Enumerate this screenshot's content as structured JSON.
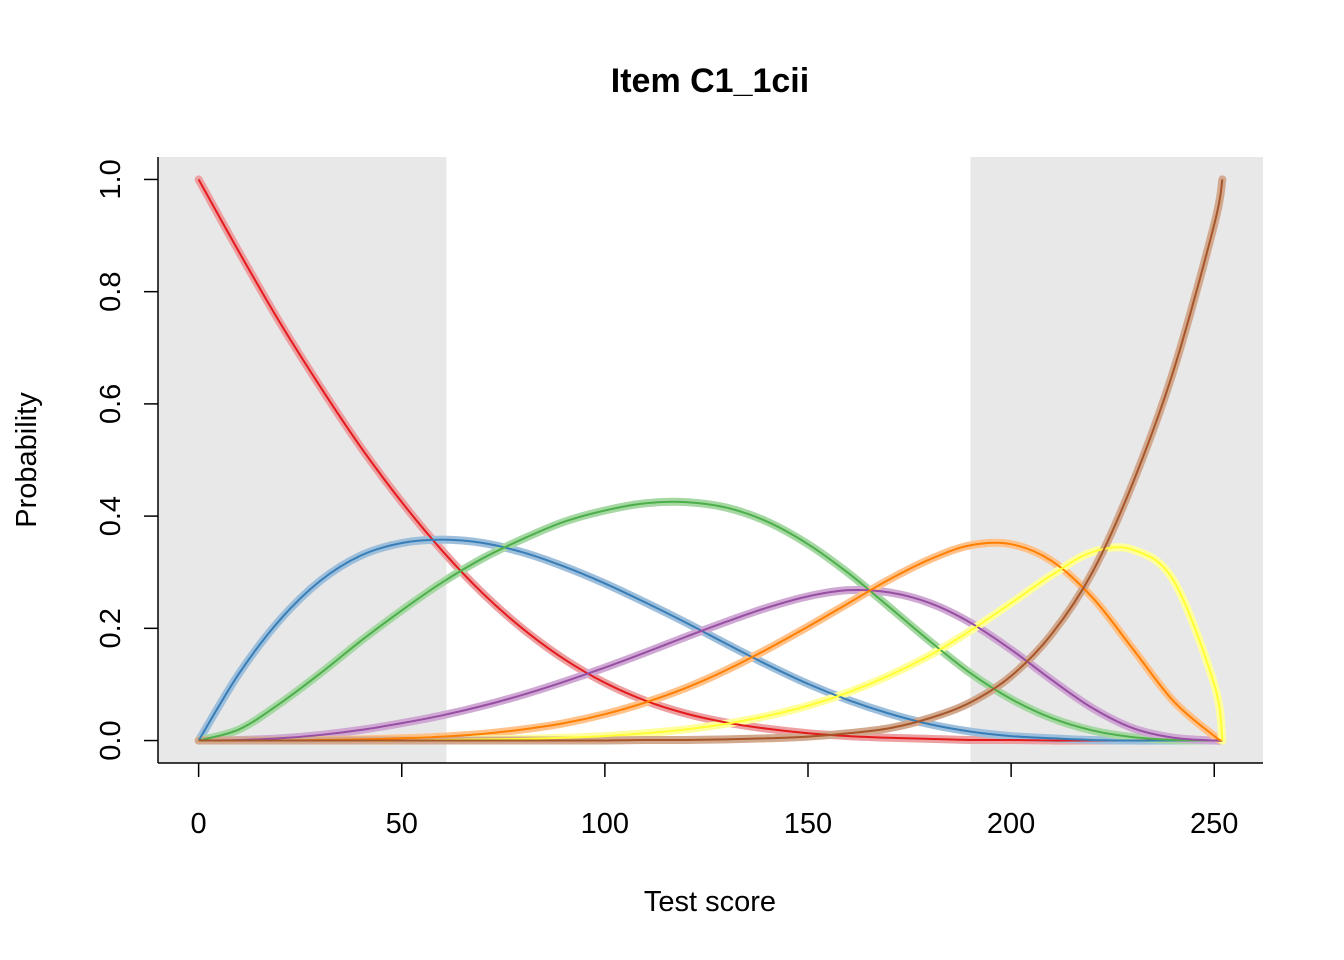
{
  "chart_data": {
    "type": "line",
    "title": "Item C1_1cii",
    "xlabel": "Test score",
    "ylabel": "Probability",
    "xlim": [
      -10,
      262
    ],
    "ylim": [
      -0.04,
      1.04
    ],
    "xticks": [
      0,
      50,
      100,
      150,
      200,
      250
    ],
    "yticks": [
      0.0,
      0.2,
      0.4,
      0.6,
      0.8,
      1.0
    ],
    "xtick_labels": [
      "0",
      "50",
      "100",
      "150",
      "200",
      "250"
    ],
    "ytick_labels": [
      "0.0",
      "0.2",
      "0.4",
      "0.6",
      "0.8",
      "1.0"
    ],
    "shaded_regions": [
      {
        "x_from": -10,
        "x_to": 61,
        "color": "#e8e8e8"
      },
      {
        "x_from": 190,
        "x_to": 262,
        "color": "#e8e8e8"
      }
    ],
    "grid": false,
    "legend": "none",
    "x": [
      0,
      10,
      20,
      30,
      40,
      50,
      60,
      70,
      80,
      90,
      100,
      110,
      120,
      130,
      140,
      150,
      160,
      170,
      180,
      190,
      200,
      210,
      220,
      230,
      240,
      250,
      252
    ],
    "series": [
      {
        "color": "#e41a1c",
        "band_color": "#eda0a2",
        "values": [
          1.0,
          0.87,
          0.745,
          0.63,
          0.522,
          0.425,
          0.338,
          0.262,
          0.198,
          0.145,
          0.103,
          0.071,
          0.048,
          0.032,
          0.021,
          0.013,
          0.008,
          0.005,
          0.003,
          0.001,
          0.001,
          0.0,
          0.0,
          0.0,
          0.0,
          0.0,
          0.0
        ]
      },
      {
        "color": "#377eb8",
        "band_color": "#9dbfdc",
        "values": [
          0.0,
          0.12,
          0.215,
          0.285,
          0.33,
          0.352,
          0.358,
          0.352,
          0.335,
          0.31,
          0.28,
          0.246,
          0.21,
          0.172,
          0.135,
          0.101,
          0.072,
          0.048,
          0.029,
          0.016,
          0.008,
          0.004,
          0.001,
          0.0,
          0.0,
          0.0,
          0.0
        ]
      },
      {
        "color": "#4daf4a",
        "band_color": "#a6d8a4",
        "values": [
          0.0,
          0.02,
          0.066,
          0.12,
          0.178,
          0.232,
          0.282,
          0.325,
          0.36,
          0.39,
          0.41,
          0.423,
          0.425,
          0.415,
          0.39,
          0.35,
          0.298,
          0.238,
          0.177,
          0.12,
          0.074,
          0.04,
          0.018,
          0.006,
          0.001,
          0.0,
          0.0
        ]
      },
      {
        "color": "#984ea3",
        "band_color": "#cfa9d4",
        "values": [
          0.0,
          0.001,
          0.004,
          0.01,
          0.019,
          0.031,
          0.045,
          0.062,
          0.082,
          0.105,
          0.13,
          0.157,
          0.185,
          0.212,
          0.237,
          0.257,
          0.268,
          0.264,
          0.245,
          0.21,
          0.162,
          0.108,
          0.058,
          0.022,
          0.005,
          0.0,
          0.0
        ]
      },
      {
        "color": "#ff7f00",
        "band_color": "#ffc28a",
        "values": [
          0.0,
          0.0,
          0.0,
          0.001,
          0.002,
          0.004,
          0.007,
          0.012,
          0.02,
          0.031,
          0.047,
          0.068,
          0.094,
          0.126,
          0.163,
          0.203,
          0.245,
          0.287,
          0.323,
          0.348,
          0.35,
          0.32,
          0.255,
          0.163,
          0.07,
          0.008,
          0.0
        ]
      },
      {
        "color": "#ffff33",
        "band_color": "#ffff9e",
        "values": [
          0.0,
          0.0,
          0.0,
          0.0,
          0.0,
          0.0,
          0.001,
          0.002,
          0.003,
          0.005,
          0.008,
          0.013,
          0.02,
          0.03,
          0.044,
          0.062,
          0.086,
          0.116,
          0.152,
          0.196,
          0.245,
          0.295,
          0.336,
          0.34,
          0.285,
          0.1,
          0.0
        ]
      },
      {
        "color": "#a65628",
        "band_color": "#d2a98f",
        "values": [
          0.0,
          0.0,
          0.0,
          0.0,
          0.0,
          0.0,
          0.0,
          0.0,
          0.0,
          0.0,
          0.0,
          0.001,
          0.001,
          0.002,
          0.004,
          0.007,
          0.013,
          0.022,
          0.04,
          0.068,
          0.115,
          0.19,
          0.3,
          0.46,
          0.66,
          0.92,
          1.0
        ]
      }
    ]
  }
}
